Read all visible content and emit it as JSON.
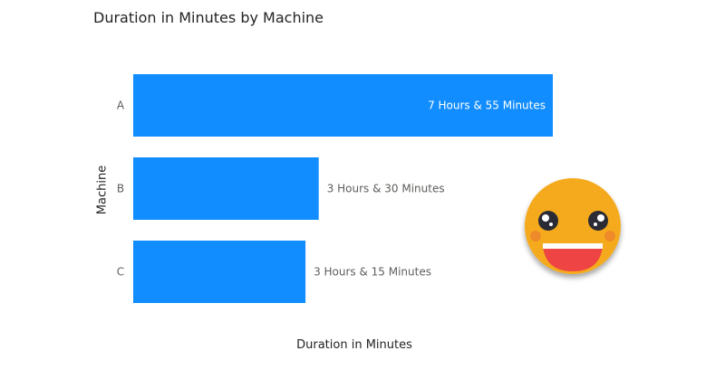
{
  "chart_data": {
    "type": "bar",
    "orientation": "horizontal",
    "title": "Duration in Minutes by Machine",
    "xlabel": "Duration in Minutes",
    "ylabel": "Machine",
    "categories": [
      "A",
      "B",
      "C"
    ],
    "values": [
      475,
      210,
      195
    ],
    "data_labels": [
      "7 Hours & 55 Minutes",
      "3 Hours & 30 Minutes",
      "3 Hours & 15 Minutes"
    ],
    "xlim": [
      0,
      475
    ],
    "grid": false,
    "bar_color": "#118DFF"
  },
  "decoration": {
    "icon": "smiling-face-emoji"
  }
}
